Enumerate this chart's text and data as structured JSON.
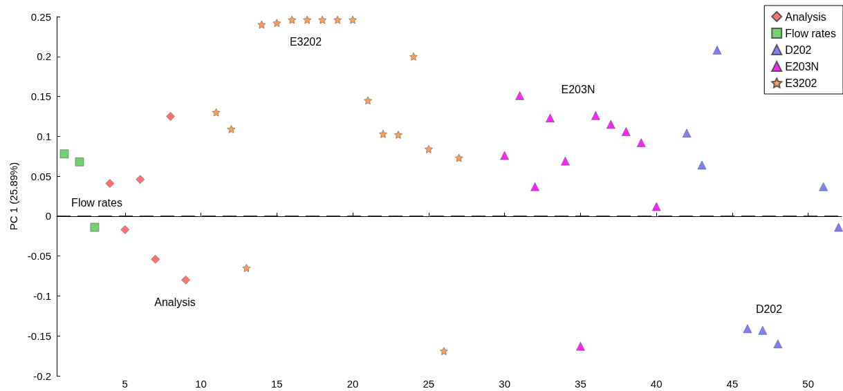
{
  "chart_data": {
    "type": "scatter",
    "ylabel": "PC 1 (25.89%)",
    "xlim": [
      0.5,
      52.2
    ],
    "xticks": [
      5,
      10,
      15,
      20,
      25,
      30,
      35,
      40,
      45,
      50
    ],
    "ylim": [
      -0.2,
      0.25
    ],
    "yticks": [
      -0.2,
      -0.15,
      -0.1,
      -0.05,
      0,
      0.05,
      0.1,
      0.15,
      0.2,
      0.25
    ],
    "grid": false,
    "legend": "top right",
    "series": [
      {
        "name": "Analysis",
        "color": "#ff5a5a",
        "marker": "diamond",
        "x": [
          4,
          5,
          6,
          7,
          8,
          9
        ],
        "values": [
          0.041,
          -0.017,
          0.046,
          -0.054,
          0.125,
          -0.08
        ]
      },
      {
        "name": "Flow rates",
        "color": "#5ac85a",
        "marker": "square",
        "x": [
          1,
          2,
          3
        ],
        "values": [
          0.078,
          0.068,
          -0.014
        ]
      },
      {
        "name": "D202",
        "color": "#6a6aff",
        "marker": "triangle",
        "x": [
          42,
          43,
          44,
          46,
          47,
          48,
          51,
          52
        ],
        "values": [
          0.104,
          0.064,
          0.208,
          -0.141,
          -0.143,
          -0.16,
          0.037,
          -0.014
        ]
      },
      {
        "name": "E203N",
        "color": "#ff00ff",
        "marker": "triangle",
        "x": [
          30,
          31,
          32,
          33,
          34,
          35,
          36,
          37,
          38,
          39,
          40
        ],
        "values": [
          0.076,
          0.151,
          0.037,
          0.123,
          0.069,
          -0.163,
          0.126,
          0.115,
          0.106,
          0.092,
          0.012
        ]
      },
      {
        "name": "E3202",
        "color": "#ff8c3c",
        "marker": "star",
        "x": [
          11,
          12,
          13,
          14,
          15,
          16,
          17,
          18,
          19,
          20,
          21,
          22,
          23,
          24,
          25,
          26,
          27
        ],
        "values": [
          0.13,
          0.109,
          -0.065,
          0.24,
          0.242,
          0.246,
          0.246,
          0.246,
          0.246,
          0.246,
          0.145,
          0.103,
          0.102,
          0.2,
          0.084,
          -0.169,
          0.073
        ]
      }
    ],
    "ref_lines": [
      {
        "axis": "y",
        "value": 0,
        "color": "#000000",
        "line_style": "dashed"
      }
    ],
    "annotations": [
      "Flow rates",
      "Analysis",
      "E3202",
      "E203N",
      "D202"
    ]
  }
}
